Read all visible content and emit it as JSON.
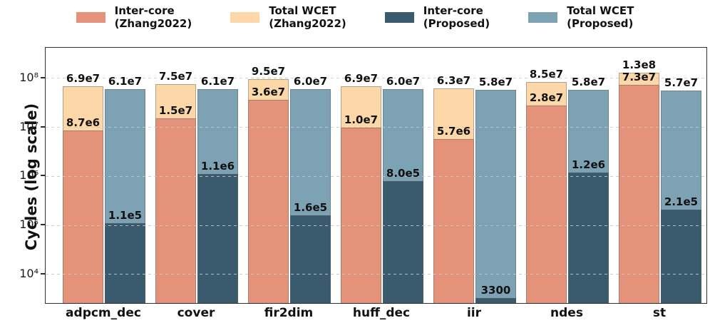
{
  "figure": {
    "ylabel": "Cycles (log scale)"
  },
  "legend": [
    {
      "line1": "Inter-core",
      "line2": "(Zhang2022)",
      "color": "#E4927A"
    },
    {
      "line1": "Total WCET",
      "line2": "(Zhang2022)",
      "color": "#FCD7A8"
    },
    {
      "line1": "Inter-core",
      "line2": "(Proposed)",
      "color": "#3A5A6D"
    },
    {
      "line1": "Total WCET",
      "line2": "(Proposed)",
      "color": "#7CA2B4"
    }
  ],
  "chart_data": {
    "type": "bar",
    "yscale": "log",
    "ylabel": "Cycles (log scale)",
    "xlabel": "",
    "ylim": [
      2600,
      420000000
    ],
    "grid": "horizontal dashed gridlines at each decade, drawn over bars",
    "legend_position": "top",
    "yticks": [
      {
        "value": 10000,
        "label": "10⁴"
      },
      {
        "value": 100000,
        "label": "10⁵"
      },
      {
        "value": 1000000,
        "label": "10⁶"
      },
      {
        "value": 10000000,
        "label": "10⁷"
      },
      {
        "value": 100000000,
        "label": "10⁸"
      }
    ],
    "categories": [
      "adpcm_dec",
      "cover",
      "fir2dim",
      "huff_dec",
      "iir",
      "ndes",
      "st"
    ],
    "series": [
      {
        "id": "total-wcet-zhang2022",
        "name": "Total WCET (Zhang2022)",
        "color": "#FCD7A8",
        "pair": "zhang2022",
        "layer": "back",
        "values": [
          69000000,
          75000000,
          95000000,
          69000000,
          63000000,
          85000000,
          130000000
        ],
        "labels": [
          "6.9e7",
          "7.5e7",
          "9.5e7",
          "6.9e7",
          "6.3e7",
          "8.5e7",
          "1.3e8"
        ]
      },
      {
        "id": "inter-core-zhang2022",
        "name": "Inter-core (Zhang2022)",
        "color": "#E4927A",
        "pair": "zhang2022",
        "layer": "front",
        "values": [
          8700000,
          15000000,
          36000000,
          10000000,
          5700000,
          28000000,
          73000000
        ],
        "labels": [
          "8.7e6",
          "1.5e7",
          "3.6e7",
          "1.0e7",
          "5.7e6",
          "2.8e7",
          "7.3e7"
        ]
      },
      {
        "id": "total-wcet-proposed",
        "name": "Total WCET (Proposed)",
        "color": "#7CA2B4",
        "pair": "proposed",
        "layer": "back",
        "values": [
          61000000,
          61000000,
          60000000,
          60000000,
          58000000,
          58000000,
          57000000
        ],
        "labels": [
          "6.1e7",
          "6.1e7",
          "6.0e7",
          "6.0e7",
          "5.8e7",
          "5.8e7",
          "5.7e7"
        ]
      },
      {
        "id": "inter-core-proposed",
        "name": "Inter-core (Proposed)",
        "color": "#3A5A6D",
        "pair": "proposed",
        "layer": "front",
        "values": [
          110000,
          1100000,
          160000,
          800000,
          3300,
          1200000,
          210000
        ],
        "labels": [
          "1.1e5",
          "1.1e6",
          "1.6e5",
          "8.0e5",
          "3300",
          "1.2e6",
          "2.1e5"
        ]
      }
    ]
  }
}
